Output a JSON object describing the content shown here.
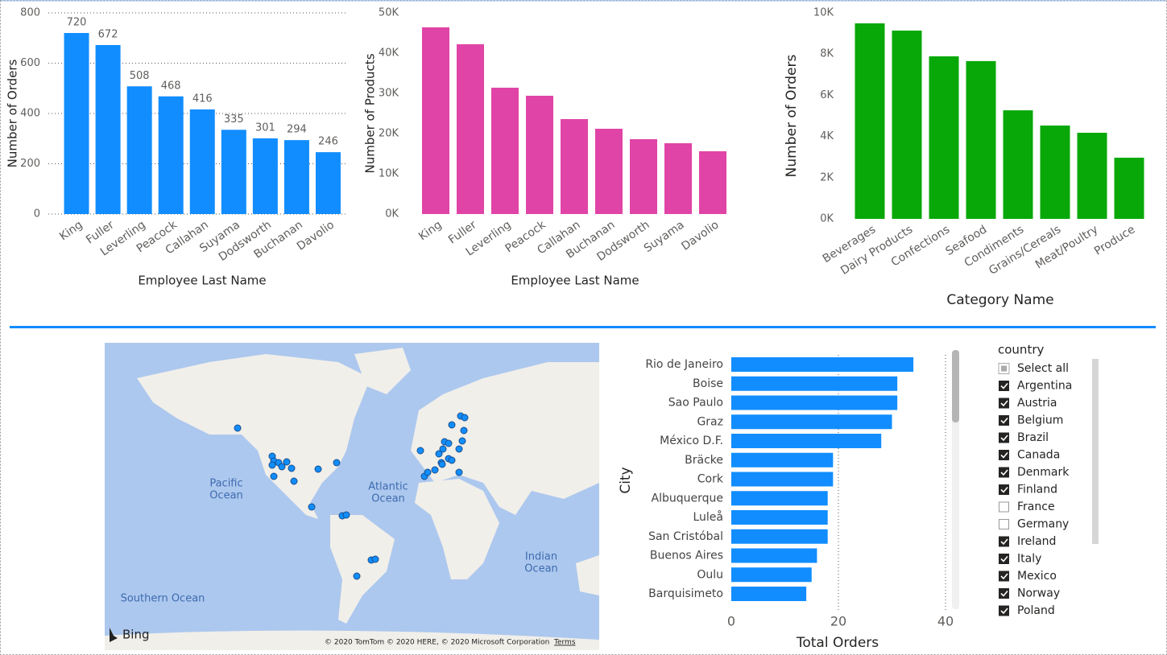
{
  "chart_data": [
    {
      "type": "bar",
      "x_label": "Employee Last Name",
      "y_label": "Number of Orders",
      "categories": [
        "King",
        "Fuller",
        "Leverling",
        "Peacock",
        "Callahan",
        "Suyama",
        "Dodsworth",
        "Buchanan",
        "Davolio"
      ],
      "values": [
        720,
        672,
        508,
        468,
        416,
        335,
        301,
        294,
        246
      ],
      "color": "#118dff",
      "ylim": [
        0,
        800
      ],
      "yticks": [
        0,
        200,
        400,
        600,
        800
      ],
      "grid": true,
      "data_labels": true
    },
    {
      "type": "bar",
      "x_label": "Employee Last Name",
      "y_label": "Number of Products",
      "categories": [
        "King",
        "Fuller",
        "Leverling",
        "Peacock",
        "Callahan",
        "Buchanan",
        "Dodsworth",
        "Suyama",
        "Davolio"
      ],
      "values": [
        46400,
        42200,
        31400,
        29400,
        23600,
        21200,
        18600,
        17600,
        15600
      ],
      "color": "#e044a7",
      "ylim": [
        0,
        50000
      ],
      "yticks": [
        {
          "value": 0,
          "label": "0K"
        },
        {
          "value": 10000,
          "label": "10K"
        },
        {
          "value": 20000,
          "label": "20K"
        },
        {
          "value": 30000,
          "label": "30K"
        },
        {
          "value": 40000,
          "label": "40K"
        },
        {
          "value": 50000,
          "label": "50K"
        }
      ],
      "grid": false,
      "data_labels": false
    },
    {
      "type": "bar",
      "x_label": "Category Name",
      "y_label": "Number of Orders",
      "categories": [
        "Beverages",
        "Dairy Products",
        "Confections",
        "Seafood",
        "Condiments",
        "Grains/Cereals",
        "Meat/Poultry",
        "Produce"
      ],
      "values": [
        9490,
        9140,
        7890,
        7660,
        5270,
        4530,
        4180,
        2970
      ],
      "color": "#07a807",
      "ylim": [
        0,
        10000
      ],
      "yticks": [
        {
          "value": 0,
          "label": "0K"
        },
        {
          "value": 2000,
          "label": "2K"
        },
        {
          "value": 4000,
          "label": "4K"
        },
        {
          "value": 6000,
          "label": "6K"
        },
        {
          "value": 8000,
          "label": "8K"
        },
        {
          "value": 10000,
          "label": "10K"
        }
      ],
      "grid": false,
      "data_labels": false
    },
    {
      "type": "hbar",
      "x_label": "Total Orders",
      "y_label": "City",
      "categories": [
        "Rio de Janeiro",
        "Boise",
        "Sao Paulo",
        "Graz",
        "México D.F.",
        "Bräcke",
        "Cork",
        "Albuquerque",
        "Luleå",
        "San Cristóbal",
        "Buenos Aires",
        "Oulu",
        "Barquisimeto"
      ],
      "values": [
        34,
        31,
        31,
        30,
        28,
        19,
        19,
        18,
        18,
        18,
        16,
        15,
        14
      ],
      "color": "#118dff",
      "xlim": [
        0,
        40
      ],
      "xticks": [
        0,
        20,
        40
      ],
      "grid": true
    }
  ],
  "map": {
    "oceans": [
      [
        "Pacific",
        "Ocean"
      ],
      [
        "Atlantic",
        "Ocean"
      ],
      [
        "Indian",
        "Ocean"
      ],
      [
        "Southern Ocean"
      ]
    ],
    "logo": "Bing",
    "copyright": "© 2020 TomTom © 2020 HERE, © 2020 Microsoft Corporation",
    "terms": "Terms"
  },
  "slicer": {
    "title": "country",
    "items": [
      {
        "label": "Select all",
        "checked": "partial"
      },
      {
        "label": "Argentina",
        "checked": true
      },
      {
        "label": "Austria",
        "checked": true
      },
      {
        "label": "Belgium",
        "checked": true
      },
      {
        "label": "Brazil",
        "checked": true
      },
      {
        "label": "Canada",
        "checked": true
      },
      {
        "label": "Denmark",
        "checked": true
      },
      {
        "label": "Finland",
        "checked": true
      },
      {
        "label": "France",
        "checked": false
      },
      {
        "label": "Germany",
        "checked": false
      },
      {
        "label": "Ireland",
        "checked": true
      },
      {
        "label": "Italy",
        "checked": true
      },
      {
        "label": "Mexico",
        "checked": true
      },
      {
        "label": "Norway",
        "checked": true
      },
      {
        "label": "Poland",
        "checked": true
      }
    ]
  }
}
